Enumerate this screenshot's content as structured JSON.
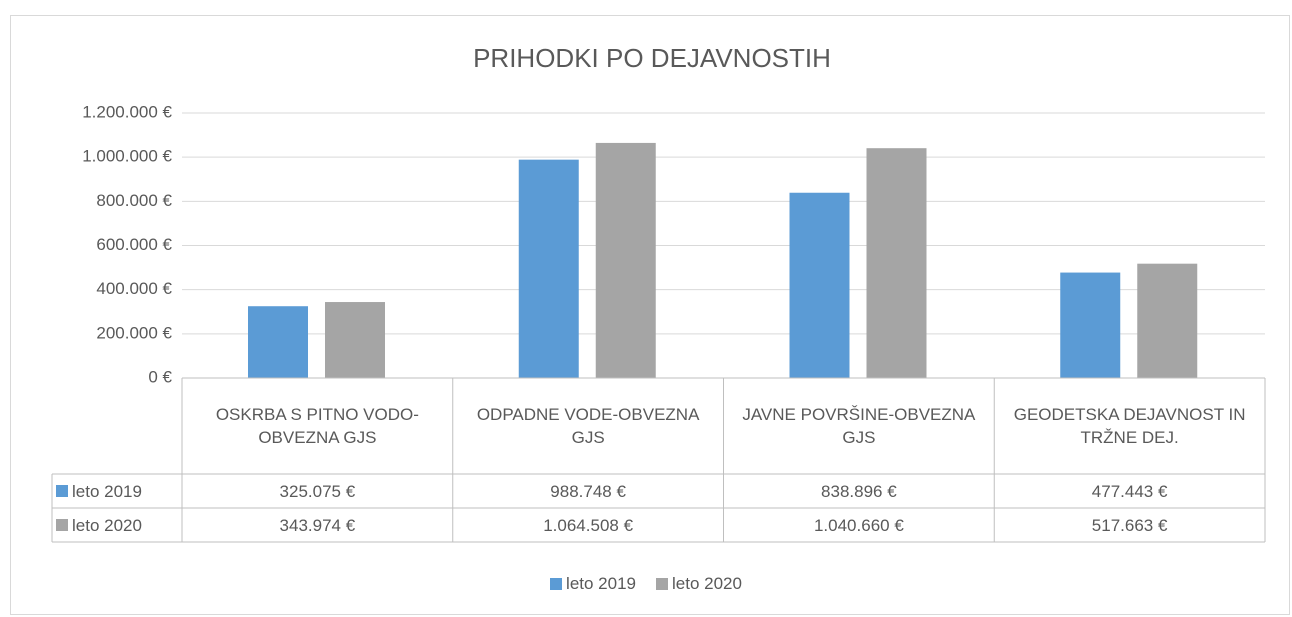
{
  "chart_data": {
    "type": "bar",
    "title": "PRIHODKI PO DEJAVNOSTIH",
    "categories": [
      "OSKRBA S PITNO VODO- OBVEZNA GJS",
      "ODPADNE VODE-OBVEZNA GJS",
      "JAVNE POVRŠINE-OBVEZNA GJS",
      "GEODETSKA DEJAVNOST IN TRŽNE DEJ."
    ],
    "series": [
      {
        "name": "leto 2019",
        "color": "#5b9bd5",
        "values": [
          325075,
          988748,
          838896,
          477443
        ],
        "value_labels": [
          "325.075 €",
          "988.748 €",
          "838.896 €",
          "477.443 €"
        ]
      },
      {
        "name": "leto 2020",
        "color": "#a5a5a5",
        "values": [
          343974,
          1064508,
          1040660,
          517663
        ],
        "value_labels": [
          "343.974 €",
          "1.064.508 €",
          "1.040.660 €",
          "517.663 €"
        ]
      }
    ],
    "ylim": [
      0,
      1200000
    ],
    "yticks": [
      {
        "value": 0,
        "label": "0 €"
      },
      {
        "value": 200000,
        "label": "200.000 €"
      },
      {
        "value": 400000,
        "label": "400.000 €"
      },
      {
        "value": 600000,
        "label": "600.000 €"
      },
      {
        "value": 800000,
        "label": "800.000 €"
      },
      {
        "value": 1000000,
        "label": "1.000.000 €"
      },
      {
        "value": 1200000,
        "label": "1.200.000 €"
      }
    ],
    "grid": true,
    "legend": "bottom"
  }
}
